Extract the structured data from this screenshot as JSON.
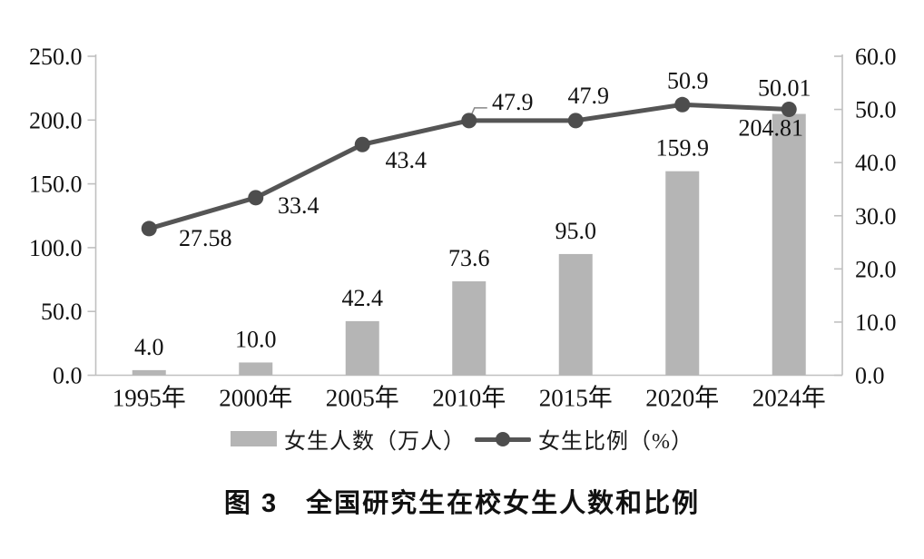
{
  "figure": {
    "caption": "图 3　全国研究生在校女生人数和比例"
  },
  "chart_data": {
    "type": "bar",
    "subtype": "combo-bar-line",
    "title": "图 3　全国研究生在校女生人数和比例",
    "categories": [
      "1995年",
      "2000年",
      "2005年",
      "2010年",
      "2015年",
      "2020年",
      "2024年"
    ],
    "series": [
      {
        "name": "女生人数（万人）",
        "type": "bar",
        "axis": "left",
        "values": [
          4.0,
          10.0,
          42.4,
          73.6,
          95.0,
          159.9,
          204.81
        ],
        "labels": [
          "4.0",
          "10.0",
          "42.4",
          "73.6",
          "95.0",
          "159.9",
          "204.81"
        ],
        "color": "#b5b5b5"
      },
      {
        "name": "女生比例（%）",
        "type": "line",
        "axis": "right",
        "values": [
          27.58,
          33.4,
          43.4,
          47.9,
          47.9,
          50.9,
          50.01
        ],
        "labels": [
          "27.58",
          "33.4",
          "43.4",
          "47.9",
          "47.9",
          "50.9",
          "50.01"
        ],
        "color": "#555555",
        "marker_color": "#4d4d4d"
      }
    ],
    "left_axis": {
      "min": 0,
      "max": 250,
      "step": 50,
      "tick_labels": [
        "0.0",
        "50.0",
        "100.0",
        "150.0",
        "200.0",
        "250.0"
      ]
    },
    "right_axis": {
      "min": 0,
      "max": 60,
      "step": 10,
      "tick_labels": [
        "0.0",
        "10.0",
        "20.0",
        "30.0",
        "40.0",
        "50.0",
        "60.0"
      ]
    },
    "grid": false,
    "legend_position": "bottom",
    "axis_color": "#c0c0c0",
    "text_color": "#111111"
  }
}
